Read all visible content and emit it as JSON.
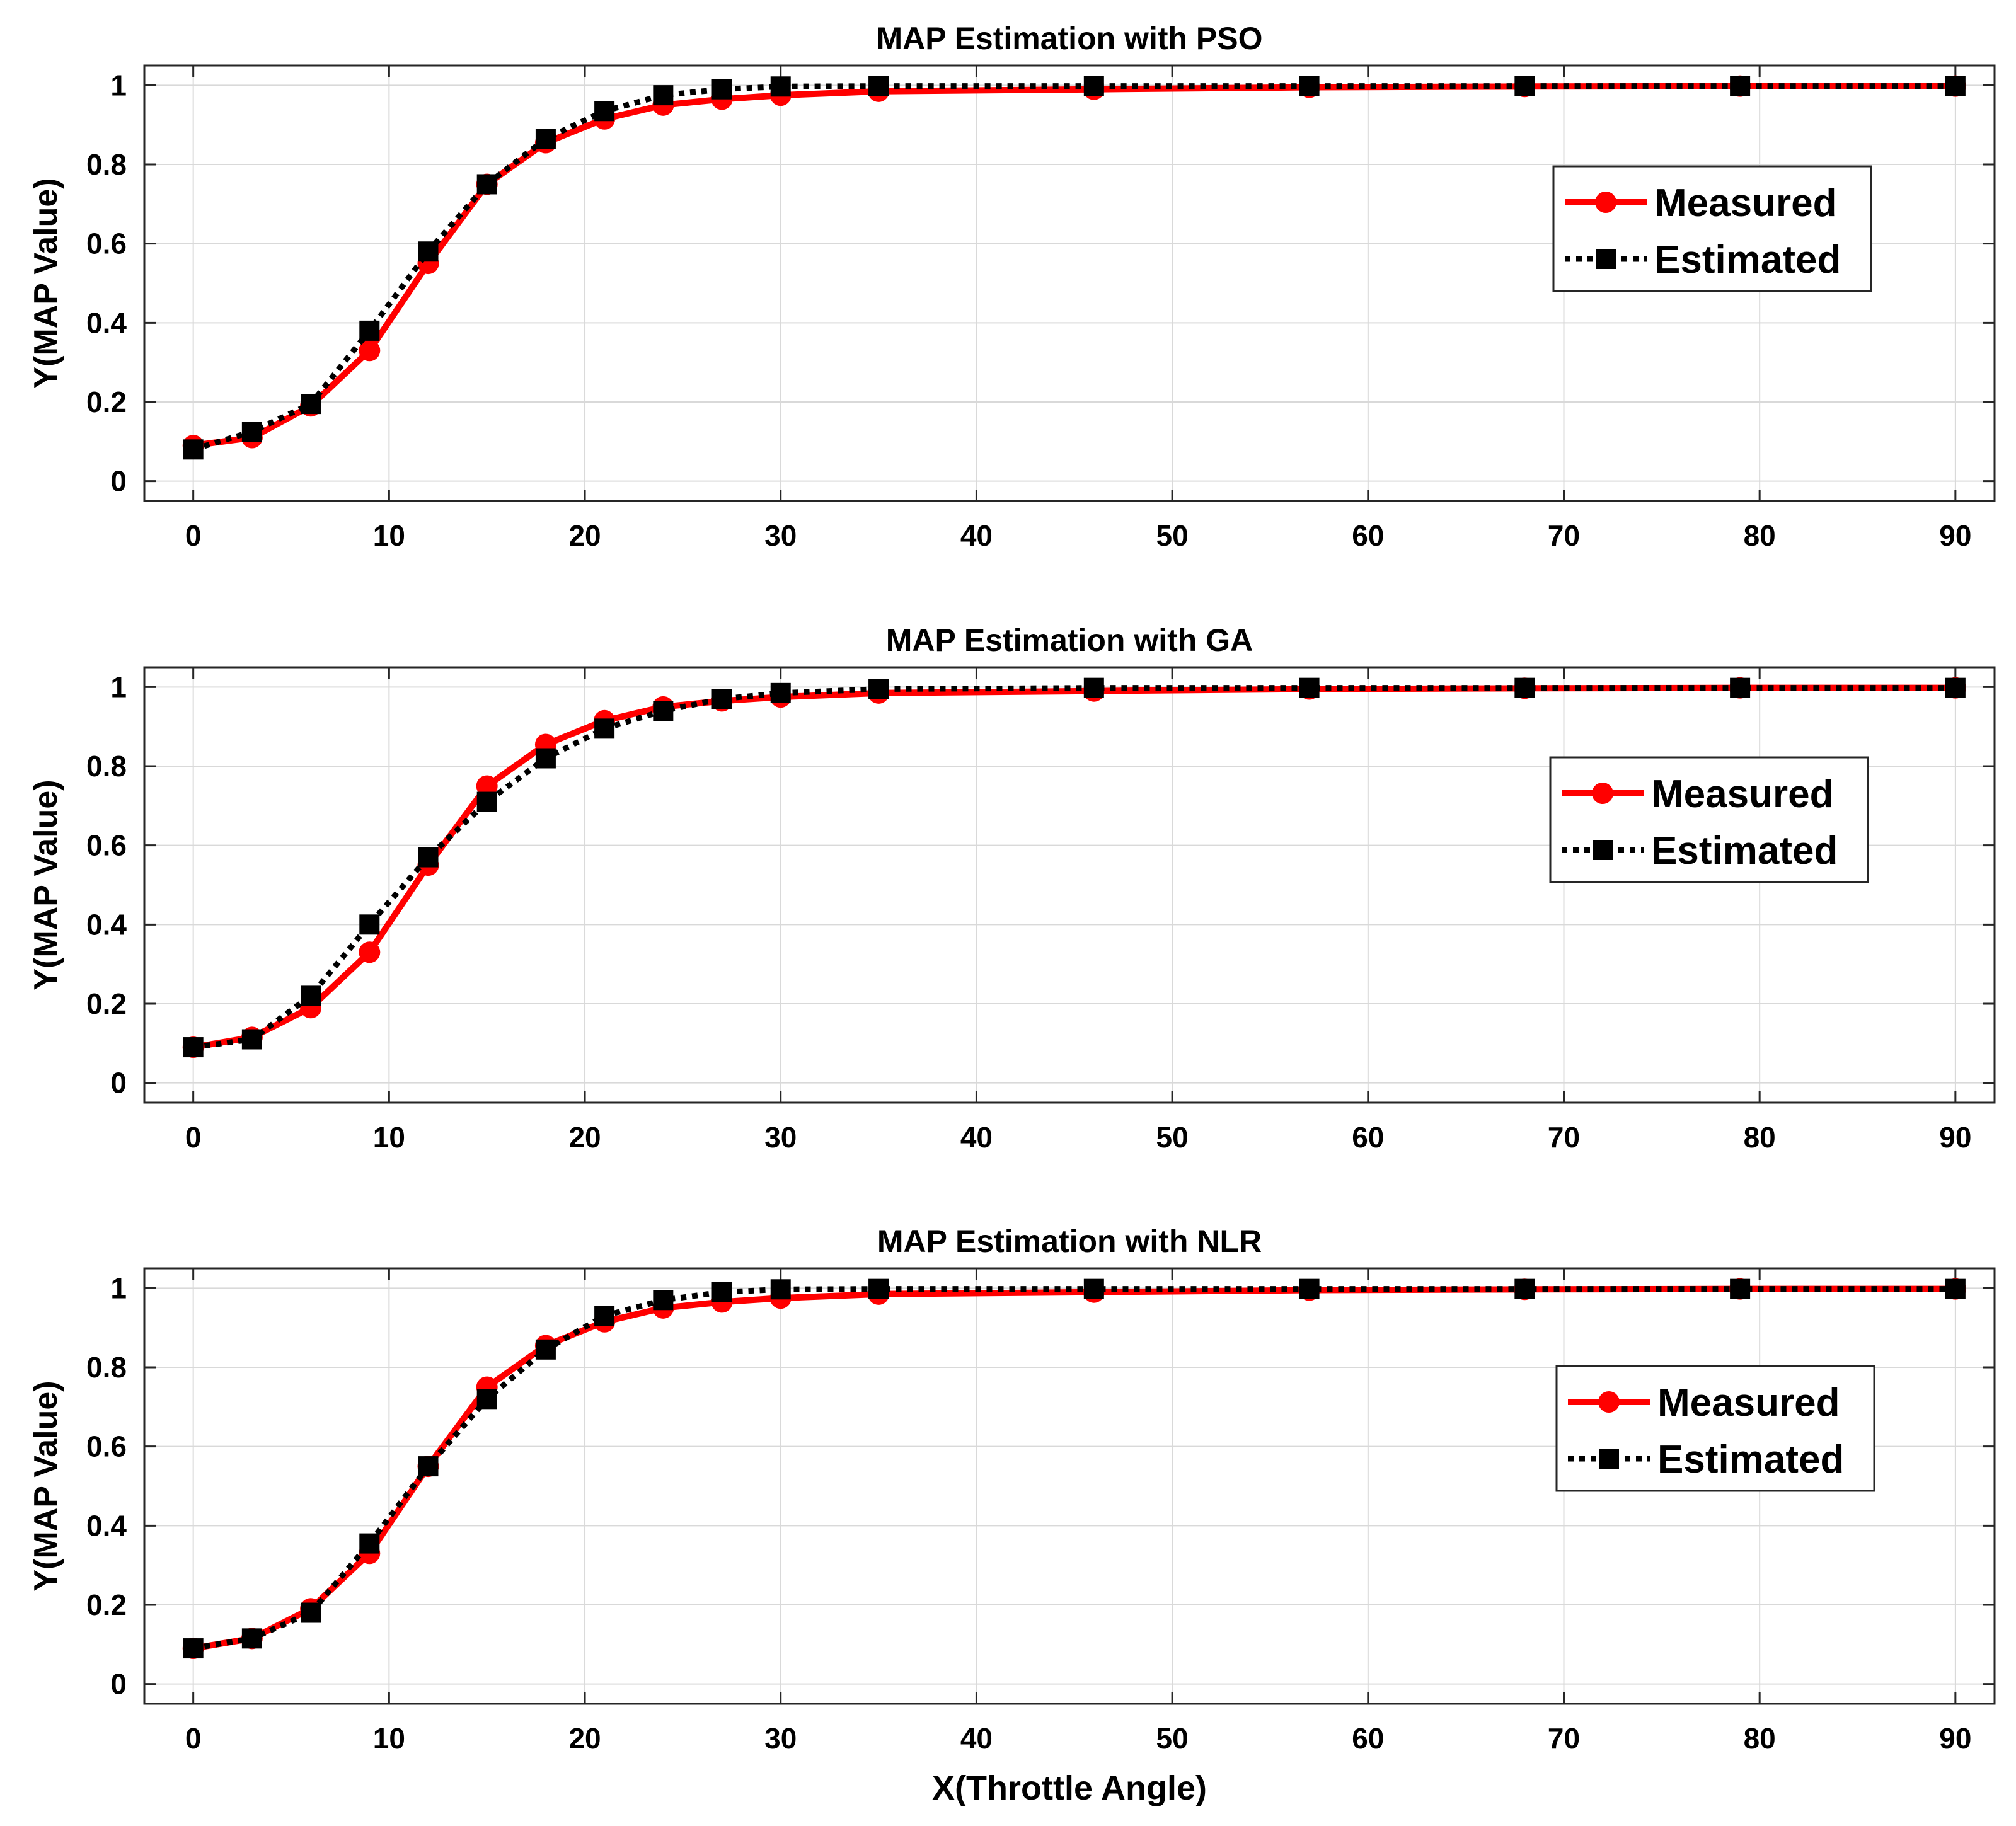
{
  "chart_data": [
    {
      "type": "line",
      "title": "MAP Estimation with PSO",
      "xlabel": "",
      "ylabel": "Y(MAP Value)",
      "xlim": [
        -2.5,
        92
      ],
      "ylim": [
        -0.05,
        1.05
      ],
      "xticks": [
        "0",
        "10",
        "20",
        "30",
        "40",
        "50",
        "60",
        "70",
        "80",
        "90"
      ],
      "yticks": [
        "0",
        "0.2",
        "0.4",
        "0.6",
        "0.8",
        "1"
      ],
      "grid": true,
      "legend_position": "right",
      "x": [
        0,
        3,
        6,
        9,
        12,
        15,
        18,
        21,
        24,
        27,
        30,
        35,
        46,
        57,
        68,
        79,
        90
      ],
      "series": [
        {
          "name": "Measured",
          "color": "#ff0000",
          "style": "solid-circle",
          "values": [
            0.09,
            0.11,
            0.19,
            0.33,
            0.55,
            0.75,
            0.855,
            0.915,
            0.95,
            0.965,
            0.975,
            0.985,
            0.99,
            0.995,
            0.997,
            0.998,
            0.998
          ]
        },
        {
          "name": "Estimated",
          "color": "#000000",
          "style": "dotted-square",
          "values": [
            0.08,
            0.125,
            0.195,
            0.38,
            0.58,
            0.75,
            0.865,
            0.935,
            0.975,
            0.99,
            0.997,
            0.998,
            0.998,
            0.998,
            0.998,
            0.998,
            0.998
          ]
        }
      ]
    },
    {
      "type": "line",
      "title": "MAP Estimation with GA",
      "xlabel": "",
      "ylabel": "Y(MAP Value)",
      "xlim": [
        -2.5,
        92
      ],
      "ylim": [
        -0.05,
        1.05
      ],
      "xticks": [
        "0",
        "10",
        "20",
        "30",
        "40",
        "50",
        "60",
        "70",
        "80",
        "90"
      ],
      "yticks": [
        "0",
        "0.2",
        "0.4",
        "0.6",
        "0.8",
        "1"
      ],
      "grid": true,
      "legend_position": "right",
      "x": [
        0,
        3,
        6,
        9,
        12,
        15,
        18,
        21,
        24,
        27,
        30,
        35,
        46,
        57,
        68,
        79,
        90
      ],
      "series": [
        {
          "name": "Measured",
          "color": "#ff0000",
          "style": "solid-circle",
          "values": [
            0.09,
            0.115,
            0.19,
            0.33,
            0.55,
            0.75,
            0.855,
            0.915,
            0.95,
            0.965,
            0.975,
            0.985,
            0.99,
            0.995,
            0.997,
            0.998,
            0.998
          ]
        },
        {
          "name": "Estimated",
          "color": "#000000",
          "style": "dotted-square",
          "values": [
            0.09,
            0.11,
            0.22,
            0.4,
            0.57,
            0.71,
            0.82,
            0.895,
            0.94,
            0.97,
            0.985,
            0.995,
            0.998,
            0.998,
            0.998,
            0.998,
            0.998
          ]
        }
      ]
    },
    {
      "type": "line",
      "title": "MAP Estimation with NLR",
      "xlabel": "X(Throttle Angle)",
      "ylabel": "Y(MAP Value)",
      "xlim": [
        -2.5,
        92
      ],
      "ylim": [
        -0.05,
        1.05
      ],
      "xticks": [
        "0",
        "10",
        "20",
        "30",
        "40",
        "50",
        "60",
        "70",
        "80",
        "90"
      ],
      "yticks": [
        "0",
        "0.2",
        "0.4",
        "0.6",
        "0.8",
        "1"
      ],
      "grid": true,
      "legend_position": "right",
      "x": [
        0,
        3,
        6,
        9,
        12,
        15,
        18,
        21,
        24,
        27,
        30,
        35,
        46,
        57,
        68,
        79,
        90
      ],
      "series": [
        {
          "name": "Measured",
          "color": "#ff0000",
          "style": "solid-circle",
          "values": [
            0.09,
            0.115,
            0.19,
            0.33,
            0.55,
            0.75,
            0.855,
            0.915,
            0.95,
            0.965,
            0.975,
            0.985,
            0.99,
            0.995,
            0.997,
            0.998,
            0.998
          ]
        },
        {
          "name": "Estimated",
          "color": "#000000",
          "style": "dotted-square",
          "values": [
            0.09,
            0.115,
            0.18,
            0.355,
            0.55,
            0.72,
            0.845,
            0.93,
            0.97,
            0.99,
            0.997,
            0.998,
            0.998,
            0.998,
            0.998,
            0.998,
            0.998
          ]
        }
      ]
    }
  ]
}
